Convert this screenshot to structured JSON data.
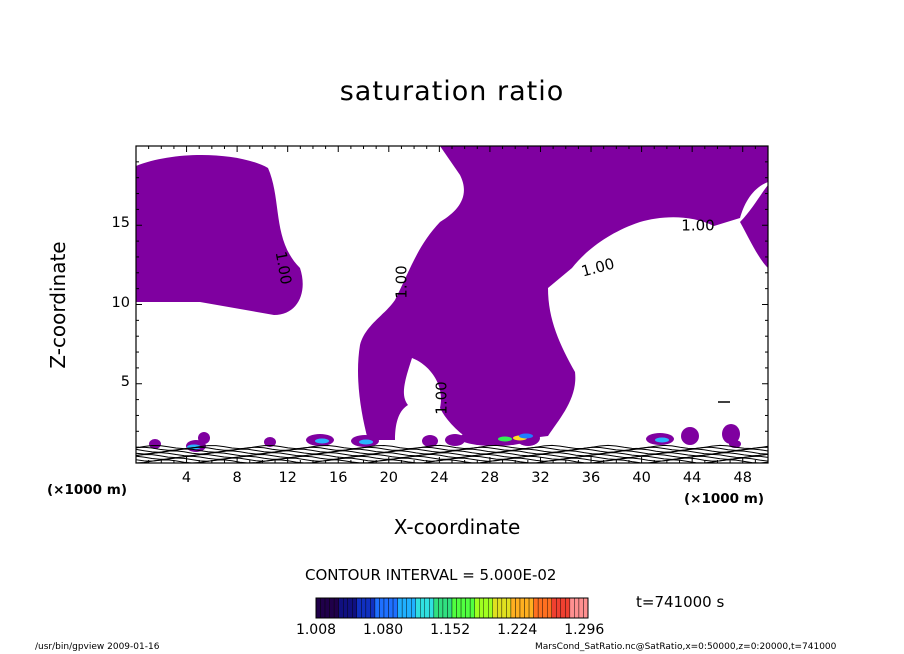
{
  "title": "saturation ratio",
  "colors": {
    "fill": "#7f00a0",
    "frame": "#000000",
    "background": "#ffffff"
  },
  "chart_data": {
    "type": "heatmap",
    "title": "saturation ratio",
    "xlabel": "X-coordinate",
    "ylabel": "Z-coordinate",
    "x_unit": "(×1000 m)",
    "y_unit": "(×1000 m)",
    "xlim": [
      0,
      50
    ],
    "ylim": [
      0,
      20
    ],
    "x_ticks": [
      4,
      8,
      12,
      16,
      20,
      24,
      28,
      32,
      36,
      40,
      44,
      48
    ],
    "y_ticks": [
      5,
      10,
      15
    ],
    "contour_labels": [
      "1.00",
      "1.00",
      "1.00",
      "1.00",
      "1.00"
    ],
    "contour_interval_text": "CONTOUR INTERVAL = 5.000E-02",
    "time_text": "t=741000  s",
    "colorbar": {
      "min": 1.008,
      "max": 1.3,
      "tick_labels": [
        "1.008",
        "1.080",
        "1.152",
        "1.224",
        "1.296"
      ]
    },
    "footer_left": "/usr/bin/gpview  2009-01-16",
    "footer_right": "MarsCond_SatRatio.nc@SatRatio,x=0:50000,z=0:20000,t=741000"
  }
}
